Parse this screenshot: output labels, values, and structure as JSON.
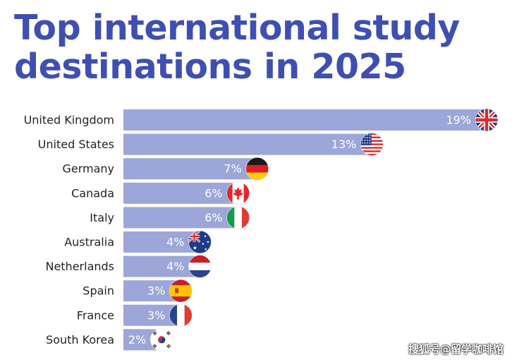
{
  "title_lines": [
    "Top international study",
    "destinations in 2025"
  ],
  "chart_data": {
    "type": "bar",
    "orientation": "horizontal",
    "title": "Top international study destinations in 2025",
    "unit": "%",
    "xlim": [
      0,
      19
    ],
    "grid": false,
    "categories": [
      "United Kingdom",
      "United States",
      "Germany",
      "Canada",
      "Italy",
      "Australia",
      "Netherlands",
      "Spain",
      "France",
      "South Korea"
    ],
    "values": [
      19,
      13,
      7,
      6,
      6,
      4,
      4,
      3,
      3,
      2
    ],
    "value_labels": [
      "19%",
      "13%",
      "7%",
      "6%",
      "6%",
      "4%",
      "4%",
      "3%",
      "3%",
      "2%"
    ],
    "flag_icons": [
      "uk-flag-icon",
      "us-flag-icon",
      "germany-flag-icon",
      "canada-flag-icon",
      "italy-flag-icon",
      "australia-flag-icon",
      "netherlands-flag-icon",
      "spain-flag-icon",
      "france-flag-icon",
      "south-korea-flag-icon"
    ],
    "bar_color": "#9da6d9",
    "label_color": "#ffffff",
    "category_color": "#222222"
  },
  "watermark": "搜狐号@留学咖啡馆"
}
